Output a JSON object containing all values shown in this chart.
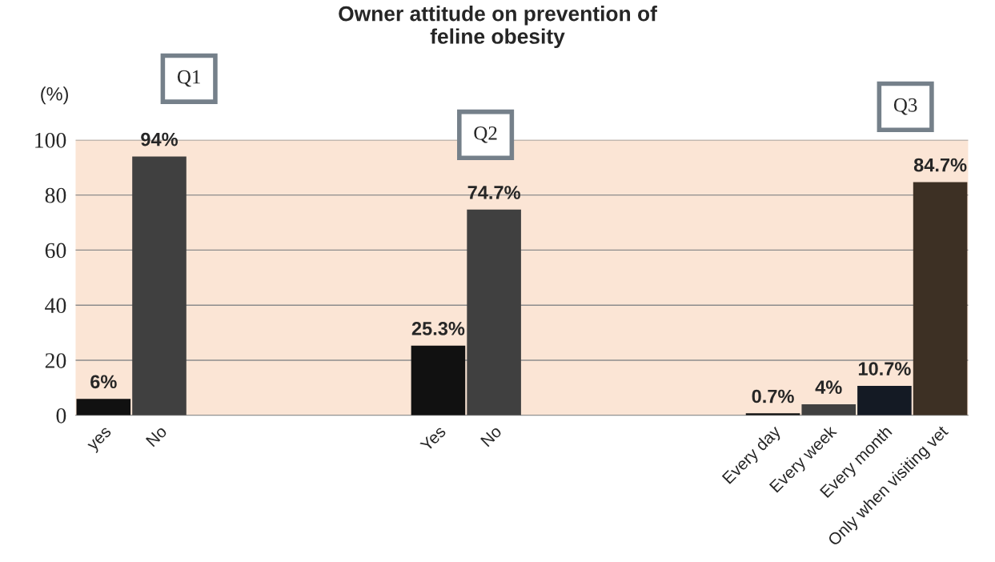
{
  "chart_data": {
    "type": "bar",
    "title": "Owner attitude on prevention of\nfeline obesity",
    "ylabel": "(%)",
    "categories": [
      "yes",
      "No",
      null,
      null,
      null,
      null,
      "Yes",
      "No",
      null,
      null,
      null,
      null,
      "Every day",
      "Every week",
      "Every month",
      "Only when visiting vet"
    ],
    "values": [
      6,
      94,
      null,
      null,
      null,
      null,
      25.3,
      74.7,
      null,
      null,
      null,
      null,
      0.7,
      4,
      10.7,
      84.7
    ],
    "colors": [
      "#111111",
      "#404040",
      null,
      null,
      null,
      null,
      "#111111",
      "#404040",
      null,
      null,
      null,
      null,
      "#111111",
      "#404040",
      "#141a24",
      "#3d3024"
    ],
    "value_labels": [
      "6%",
      "94%",
      null,
      null,
      null,
      null,
      "25.3%",
      "74.7%",
      null,
      null,
      null,
      null,
      "0.7%",
      "4%",
      "10.7%",
      "84.7%"
    ],
    "annotations": [
      "Q1",
      "Q2",
      "Q3"
    ],
    "ylim": [
      0,
      100
    ],
    "yticks": [
      0,
      20,
      40,
      60,
      80,
      100
    ],
    "grid": "y"
  }
}
